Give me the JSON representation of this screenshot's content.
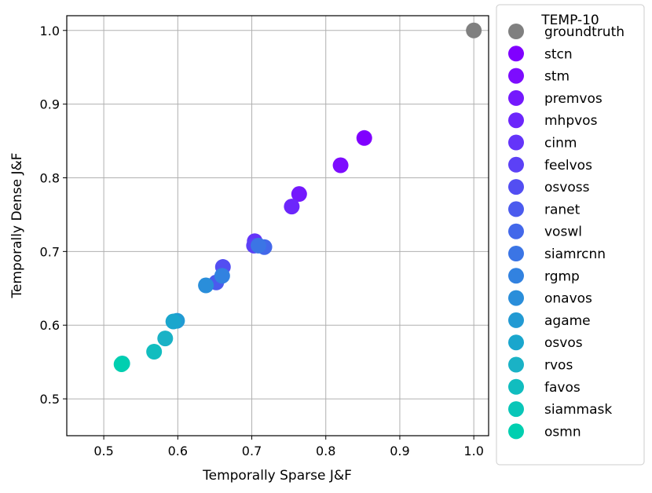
{
  "chart_data": {
    "type": "scatter",
    "title": "",
    "xlabel": "Temporally Sparse J&F",
    "ylabel": "Temporally Dense J&F",
    "xlim": [
      0.45,
      1.02
    ],
    "ylim": [
      0.45,
      1.02
    ],
    "xticks": [
      "0.5",
      "0.6",
      "0.7",
      "0.8",
      "0.9",
      "1.0"
    ],
    "yticks": [
      "0.5",
      "0.6",
      "0.7",
      "0.8",
      "0.9",
      "1.0"
    ],
    "grid": true,
    "legend": {
      "title": "TEMP-10",
      "placement": "outside-right"
    },
    "series": [
      {
        "name": "groundtruth",
        "color": "#808080",
        "x": 1.0,
        "y": 1.0
      },
      {
        "name": "stcn",
        "color": "#8000ff",
        "x": 0.852,
        "y": 0.854
      },
      {
        "name": "stm",
        "color": "#7d0cfe",
        "x": 0.82,
        "y": 0.817
      },
      {
        "name": "premvos",
        "color": "#7419fd",
        "x": 0.764,
        "y": 0.778
      },
      {
        "name": "mhpvos",
        "color": "#6c26fb",
        "x": 0.754,
        "y": 0.761
      },
      {
        "name": "cinm",
        "color": "#6434f9",
        "x": 0.704,
        "y": 0.714
      },
      {
        "name": "feelvos",
        "color": "#5c41f6",
        "x": 0.703,
        "y": 0.708
      },
      {
        "name": "osvoss",
        "color": "#534ef2",
        "x": 0.661,
        "y": 0.679
      },
      {
        "name": "ranet",
        "color": "#4b5bee",
        "x": 0.652,
        "y": 0.658
      },
      {
        "name": "voswl",
        "color": "#4368ea",
        "x": 0.717,
        "y": 0.706
      },
      {
        "name": "siamrcnn",
        "color": "#3b75e5",
        "x": 0.709,
        "y": 0.708
      },
      {
        "name": "rgmp",
        "color": "#3282e0",
        "x": 0.66,
        "y": 0.667
      },
      {
        "name": "onavos",
        "color": "#2a8eda",
        "x": 0.638,
        "y": 0.654
      },
      {
        "name": "agame",
        "color": "#229ad3",
        "x": 0.599,
        "y": 0.606
      },
      {
        "name": "osvos",
        "color": "#1aa6cd",
        "x": 0.594,
        "y": 0.605
      },
      {
        "name": "rvos",
        "color": "#1ab2c6",
        "x": 0.583,
        "y": 0.582
      },
      {
        "name": "favos",
        "color": "#11bdbf",
        "x": 0.568,
        "y": 0.564
      },
      {
        "name": "siammask",
        "color": "#09c6b8",
        "x": 0.525,
        "y": 0.548
      },
      {
        "name": "osmn",
        "color": "#00cfb0",
        "x": 0.524,
        "y": 0.547
      }
    ]
  }
}
